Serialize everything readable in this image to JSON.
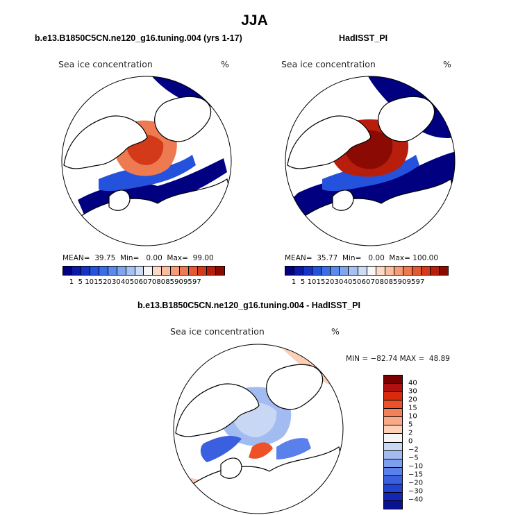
{
  "title": "JJA",
  "colors": {
    "model_scale": [
      "#000080",
      "#0a1aa8",
      "#1434c8",
      "#2452dc",
      "#3a6ee4",
      "#5a8aec",
      "#7ea6ef",
      "#a6c2f2",
      "#cfdcf4",
      "#f6f6f6",
      "#fbd9c6",
      "#f9bda0",
      "#f59b78",
      "#ee7a52",
      "#e35a32",
      "#d33a1a",
      "#b81e0c",
      "#8c0a04"
    ],
    "diff_scale": [
      "#7a0000",
      "#b01010",
      "#d82a0c",
      "#ee5028",
      "#f38058",
      "#f7aa88",
      "#fbd0b6",
      "#f4f4f4",
      "#c8d8f4",
      "#a2bcf2",
      "#7e9ef0",
      "#5a80ec",
      "#3a60e0",
      "#2242d4",
      "#1426b8",
      "#0a1294"
    ],
    "land": "#ffffff",
    "coast": "#000000"
  },
  "panels": {
    "left": {
      "subtitle": "b.e13.B1850C5CN.ne120_g16.tuning.004 (yrs 1-17)",
      "variable": "Sea ice concentration",
      "units": "%",
      "stats": "MEAN=  39.75  Min=   0.00  Max=  99.00",
      "colorbar_labels": [
        "1",
        "5",
        "10",
        "15",
        "20",
        "30",
        "40",
        "50",
        "60",
        "70",
        "80",
        "85",
        "90",
        "95",
        "97"
      ]
    },
    "right": {
      "subtitle": "HadISST_PI",
      "variable": "Sea ice concentration",
      "units": "%",
      "stats": "MEAN=  35.77  Min=   0.00  Max= 100.00",
      "colorbar_labels": [
        "1",
        "5",
        "10",
        "15",
        "20",
        "30",
        "40",
        "50",
        "60",
        "70",
        "80",
        "85",
        "90",
        "95",
        "97"
      ]
    },
    "diff": {
      "subtitle": "b.e13.B1850C5CN.ne120_g16.tuning.004 - HadISST_PI",
      "variable": "Sea ice concentration",
      "units": "%",
      "stats": "MIN = −82.74 MAX =  48.89",
      "colorbar_labels": [
        "40",
        "30",
        "20",
        "15",
        "10",
        "5",
        "2",
        "0",
        "−2",
        "−5",
        "−10",
        "−15",
        "−20",
        "−30",
        "−40"
      ]
    }
  }
}
